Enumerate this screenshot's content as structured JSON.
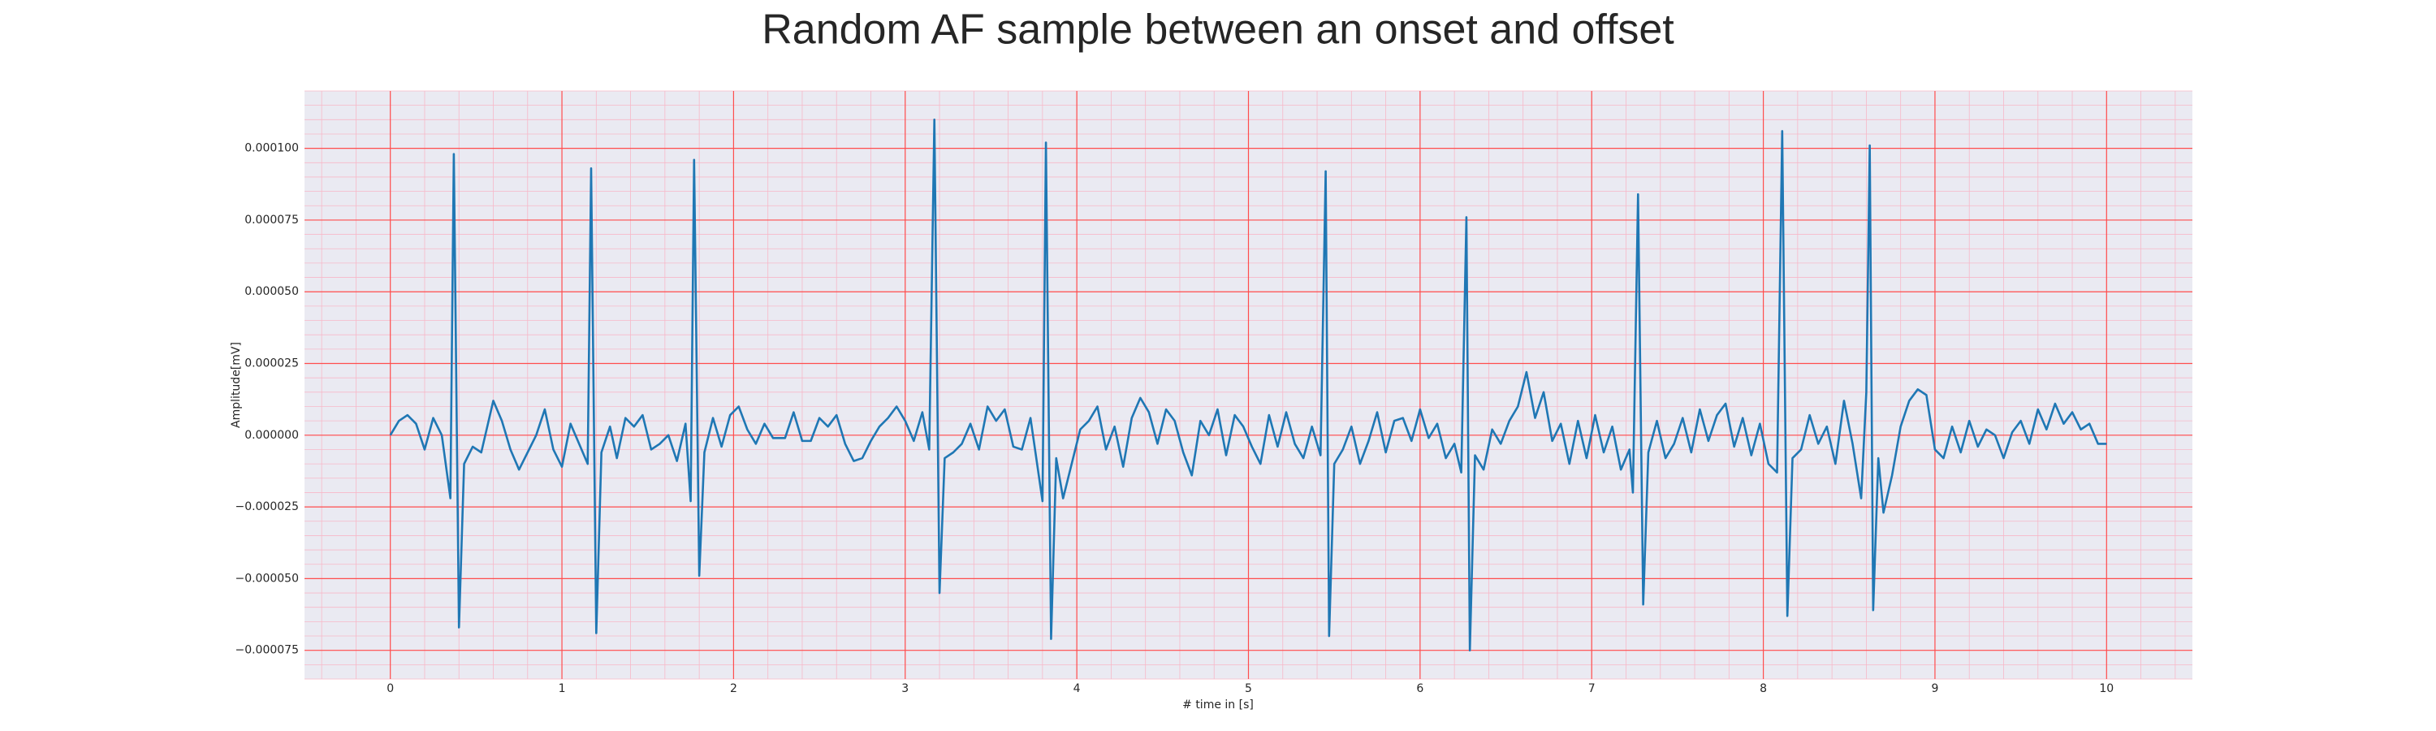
{
  "chart_data": {
    "type": "line",
    "title": "Random AF sample between an onset and offset",
    "x_label": "# time in [s]",
    "y_label": "Amplitude[mV]",
    "color": "#1f77b4",
    "xlim": [
      -0.5,
      10.5
    ],
    "ylim": [
      -8.5e-05,
      0.00012
    ],
    "xticks": [
      0,
      1,
      2,
      3,
      4,
      5,
      6,
      7,
      8,
      9,
      10
    ],
    "yticks": [
      {
        "value": -7.5e-05,
        "label": "−0.000075"
      },
      {
        "value": -5e-05,
        "label": "−0.000050"
      },
      {
        "value": -2.5e-05,
        "label": "−0.000025"
      },
      {
        "value": 0,
        "label": "0.000000"
      },
      {
        "value": 2.5e-05,
        "label": "0.000025"
      },
      {
        "value": 5e-05,
        "label": "0.000050"
      },
      {
        "value": 7.5e-05,
        "label": "0.000075"
      },
      {
        "value": 0.0001,
        "label": "0.000100"
      }
    ],
    "grid": true,
    "minor_grid": true,
    "x": [
      0,
      0.05,
      0.1,
      0.15,
      0.2,
      0.25,
      0.3,
      0.35,
      0.37,
      0.4,
      0.43,
      0.48,
      0.53,
      0.6,
      0.65,
      0.7,
      0.75,
      0.8,
      0.85,
      0.9,
      0.95,
      1.0,
      1.05,
      1.1,
      1.15,
      1.17,
      1.2,
      1.23,
      1.28,
      1.32,
      1.37,
      1.42,
      1.47,
      1.52,
      1.57,
      1.62,
      1.67,
      1.72,
      1.75,
      1.77,
      1.8,
      1.83,
      1.88,
      1.93,
      1.98,
      2.03,
      2.08,
      2.13,
      2.18,
      2.23,
      2.3,
      2.35,
      2.4,
      2.45,
      2.5,
      2.55,
      2.6,
      2.65,
      2.7,
      2.75,
      2.8,
      2.85,
      2.9,
      2.95,
      3.0,
      3.05,
      3.1,
      3.14,
      3.17,
      3.2,
      3.23,
      3.28,
      3.33,
      3.38,
      3.43,
      3.48,
      3.53,
      3.58,
      3.63,
      3.68,
      3.73,
      3.8,
      3.82,
      3.85,
      3.88,
      3.92,
      3.97,
      4.02,
      4.07,
      4.12,
      4.17,
      4.22,
      4.27,
      4.32,
      4.37,
      4.42,
      4.47,
      4.52,
      4.57,
      4.62,
      4.67,
      4.72,
      4.77,
      4.82,
      4.87,
      4.92,
      4.97,
      5.02,
      5.07,
      5.12,
      5.17,
      5.22,
      5.27,
      5.32,
      5.37,
      5.42,
      5.45,
      5.47,
      5.5,
      5.55,
      5.6,
      5.65,
      5.7,
      5.75,
      5.8,
      5.85,
      5.9,
      5.95,
      6.0,
      6.05,
      6.1,
      6.15,
      6.2,
      6.24,
      6.27,
      6.29,
      6.32,
      6.37,
      6.42,
      6.47,
      6.52,
      6.57,
      6.62,
      6.67,
      6.72,
      6.77,
      6.82,
      6.87,
      6.92,
      6.97,
      7.02,
      7.07,
      7.12,
      7.17,
      7.22,
      7.24,
      7.27,
      7.3,
      7.33,
      7.38,
      7.43,
      7.48,
      7.53,
      7.58,
      7.63,
      7.68,
      7.73,
      7.78,
      7.83,
      7.88,
      7.93,
      7.98,
      8.03,
      8.08,
      8.11,
      8.14,
      8.17,
      8.22,
      8.27,
      8.32,
      8.37,
      8.42,
      8.47,
      8.52,
      8.57,
      8.6,
      8.62,
      8.64,
      8.67,
      8.7,
      8.75,
      8.8,
      8.85,
      8.9,
      8.95,
      9.0,
      9.05,
      9.1,
      9.15,
      9.2,
      9.25,
      9.3,
      9.35,
      9.4,
      9.45,
      9.5,
      9.55,
      9.6,
      9.65,
      9.7,
      9.75,
      9.8,
      9.85,
      9.9,
      9.95,
      10.0
    ],
    "values": [
      0,
      5e-06,
      7e-06,
      4e-06,
      -5e-06,
      6e-06,
      0,
      -2.2e-05,
      9.8e-05,
      -6.7e-05,
      -1e-05,
      -4e-06,
      -6e-06,
      1.2e-05,
      5e-06,
      -5e-06,
      -1.2e-05,
      -6e-06,
      0,
      9e-06,
      -5e-06,
      -1.1e-05,
      4e-06,
      -3e-06,
      -1e-05,
      9.3e-05,
      -6.9e-05,
      -6e-06,
      3e-06,
      -8e-06,
      6e-06,
      3e-06,
      7e-06,
      -5e-06,
      -3e-06,
      0,
      -9e-06,
      4e-06,
      -2.3e-05,
      9.6e-05,
      -4.9e-05,
      -6e-06,
      6e-06,
      -4e-06,
      7e-06,
      1e-05,
      2e-06,
      -3e-06,
      4e-06,
      -1e-06,
      -1e-06,
      8e-06,
      -2e-06,
      -2e-06,
      6e-06,
      3e-06,
      7e-06,
      -3e-06,
      -9e-06,
      -8e-06,
      -2e-06,
      3e-06,
      6e-06,
      1e-05,
      5e-06,
      -2e-06,
      8e-06,
      -5e-06,
      0.00011,
      -5.5e-05,
      -8e-06,
      -6e-06,
      -3e-06,
      4e-06,
      -5e-06,
      1e-05,
      5e-06,
      9e-06,
      -4e-06,
      -5e-06,
      6e-06,
      -2.3e-05,
      0.000102,
      -7.1e-05,
      -8e-06,
      -2.2e-05,
      -1e-05,
      2e-06,
      5e-06,
      1e-05,
      -5e-06,
      3e-06,
      -1.1e-05,
      6e-06,
      1.3e-05,
      8e-06,
      -3e-06,
      9e-06,
      5e-06,
      -6e-06,
      -1.4e-05,
      5e-06,
      0,
      9e-06,
      -7e-06,
      7e-06,
      3e-06,
      -4e-06,
      -1e-05,
      7e-06,
      -4e-06,
      8e-06,
      -3e-06,
      -8e-06,
      3e-06,
      -7e-06,
      9.2e-05,
      -7e-05,
      -1e-05,
      -5e-06,
      3e-06,
      -1e-05,
      -2e-06,
      8e-06,
      -6e-06,
      5e-06,
      6e-06,
      -2e-06,
      9e-06,
      -1e-06,
      4e-06,
      -8e-06,
      -3e-06,
      -1.3e-05,
      7.6e-05,
      -7.5e-05,
      -7e-06,
      -1.2e-05,
      2e-06,
      -3e-06,
      5e-06,
      1e-05,
      2.2e-05,
      6e-06,
      1.5e-05,
      -2e-06,
      4e-06,
      -1e-05,
      5e-06,
      -8e-06,
      7e-06,
      -6e-06,
      3e-06,
      -1.2e-05,
      -5e-06,
      -2e-05,
      8.4e-05,
      -5.9e-05,
      -6e-06,
      5e-06,
      -8e-06,
      -3e-06,
      6e-06,
      -6e-06,
      9e-06,
      -2e-06,
      7e-06,
      1.1e-05,
      -4e-06,
      6e-06,
      -7e-06,
      4e-06,
      -1e-05,
      -1.3e-05,
      0.000106,
      -6.3e-05,
      -8e-06,
      -5e-06,
      7e-06,
      -3e-06,
      3e-06,
      -1e-05,
      1.2e-05,
      -3e-06,
      -2.2e-05,
      1.5e-05,
      0.000101,
      -6.1e-05,
      -8e-06,
      -2.7e-05,
      -1.4e-05,
      3e-06,
      1.2e-05,
      1.6e-05,
      1.4e-05,
      -5e-06,
      -8e-06,
      3e-06,
      -6e-06,
      5e-06,
      -4e-06,
      2e-06,
      0,
      -8e-06,
      1e-06,
      5e-06,
      -3e-06,
      9e-06,
      2e-06,
      1.1e-05,
      4e-06,
      8e-06,
      2e-06,
      4e-06,
      -3e-06,
      -3e-06
    ]
  }
}
